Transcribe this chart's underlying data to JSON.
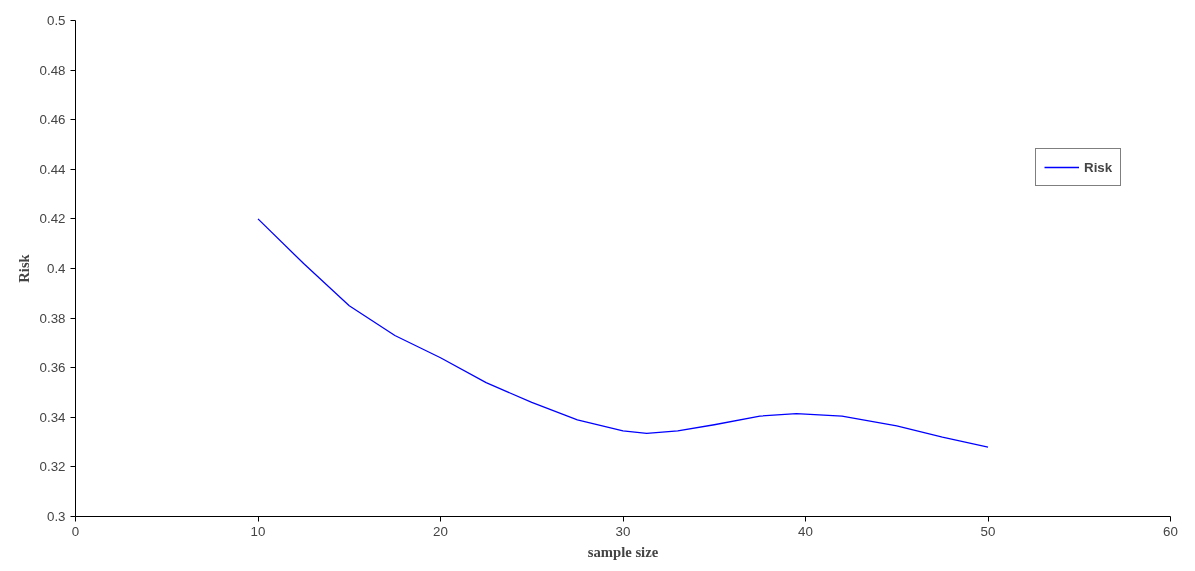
{
  "chart_data": {
    "type": "line",
    "xlabel": "sample size",
    "ylabel": "Risk",
    "xlim": [
      0,
      60
    ],
    "xticks": [
      0,
      10,
      20,
      30,
      40,
      50,
      60
    ],
    "ylim": [
      0.3,
      0.5
    ],
    "yticks": [
      0.3,
      0.32,
      0.34,
      0.36,
      0.38,
      0.4,
      0.42,
      0.44,
      0.46,
      0.48,
      0.5
    ],
    "grid": false,
    "legend": "top right",
    "marker": "none",
    "line_style": "solid",
    "series": [
      {
        "name": "Risk",
        "color": "#0000ff",
        "x": [
          10,
          12.5,
          15,
          17.5,
          20,
          22.5,
          25,
          27.5,
          30,
          31.3,
          33,
          35,
          37.5,
          39.5,
          42,
          45,
          47.5,
          50
        ],
        "values": [
          0.42,
          0.402,
          0.385,
          0.373,
          0.364,
          0.354,
          0.346,
          0.339,
          0.3345,
          0.3335,
          0.3345,
          0.337,
          0.3405,
          0.3415,
          0.3405,
          0.3365,
          0.332,
          0.328
        ]
      }
    ]
  }
}
